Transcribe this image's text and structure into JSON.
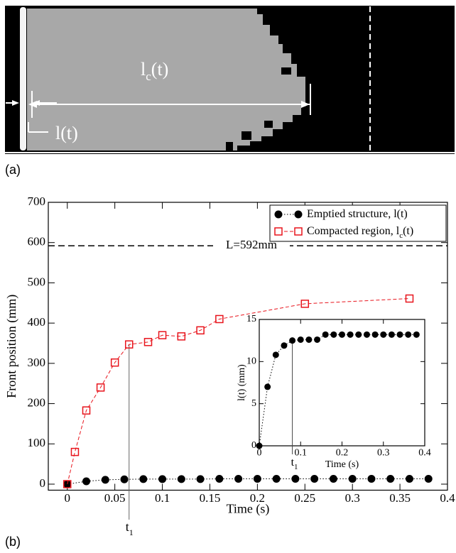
{
  "panel_a": {
    "label": "(a)",
    "lc_label": {
      "text": "l",
      "sub": "c",
      "suffix": "(t)"
    },
    "l_label": "l(t)"
  },
  "panel_b": {
    "label": "(b)"
  },
  "chart_data": {
    "type": "line",
    "xlabel": "Time (s)",
    "ylabel": "Front position (mm)",
    "xlim": [
      -0.02,
      0.4
    ],
    "ylim": [
      -15,
      700
    ],
    "xticks": [
      0,
      0.05,
      0.1,
      0.15,
      0.2,
      0.25,
      0.3,
      0.35,
      0.4
    ],
    "yticks": [
      0,
      100,
      200,
      300,
      400,
      500,
      600,
      700
    ],
    "legend": "upper right",
    "series": [
      {
        "name": "Emptied structure, l(t)",
        "color": "#000000",
        "marker": "circle",
        "x": [
          0,
          0.02,
          0.04,
          0.06,
          0.08,
          0.1,
          0.12,
          0.14,
          0.16,
          0.18,
          0.2,
          0.22,
          0.24,
          0.26,
          0.28,
          0.3,
          0.32,
          0.34,
          0.36,
          0.38
        ],
        "values": [
          0,
          7,
          10.8,
          11.9,
          12.5,
          12.6,
          12.6,
          12.6,
          13.2,
          13.2,
          13.2,
          13.2,
          13.2,
          13.2,
          13.2,
          13.2,
          13.2,
          13.2,
          13.2,
          13.2
        ]
      },
      {
        "name": "Compacted region, l",
        "name_sub": "c",
        "name_suffix": "(t)",
        "color": "#e8141c",
        "marker": "square",
        "x": [
          0,
          0.008,
          0.02,
          0.035,
          0.05,
          0.065,
          0.085,
          0.1,
          0.12,
          0.14,
          0.16,
          0.25,
          0.36
        ],
        "values": [
          0,
          80,
          183,
          240,
          302,
          347,
          353,
          370,
          367,
          382,
          410,
          448,
          461
        ]
      }
    ],
    "reference_line": {
      "value": 592,
      "label": "L=592mm"
    },
    "annotation": {
      "text": "t",
      "sub": "1"
    },
    "inset": {
      "type": "line",
      "xlabel": "Time (s)",
      "ylabel": "l(t) (mm)",
      "xlim": [
        0,
        0.4
      ],
      "ylim": [
        0,
        15
      ],
      "xticks": [
        0,
        0.1,
        0.2,
        0.3,
        0.4
      ],
      "yticks": [
        0,
        5,
        10,
        15
      ],
      "annotation": {
        "text": "t",
        "sub": "1"
      }
    }
  }
}
